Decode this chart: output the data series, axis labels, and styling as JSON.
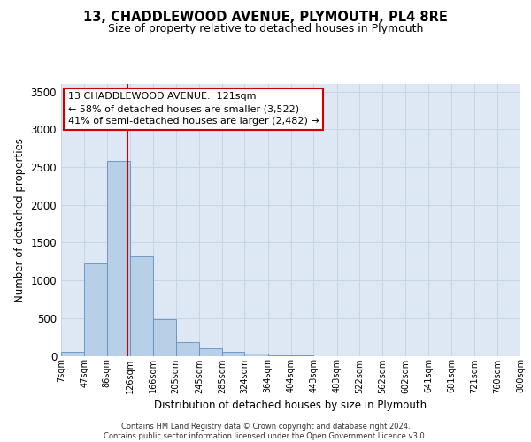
{
  "title1": "13, CHADDLEWOOD AVENUE, PLYMOUTH, PL4 8RE",
  "title2": "Size of property relative to detached houses in Plymouth",
  "xlabel": "Distribution of detached houses by size in Plymouth",
  "ylabel": "Number of detached properties",
  "categories": [
    "7sqm",
    "47sqm",
    "86sqm",
    "126sqm",
    "166sqm",
    "205sqm",
    "245sqm",
    "285sqm",
    "324sqm",
    "364sqm",
    "404sqm",
    "443sqm",
    "483sqm",
    "522sqm",
    "562sqm",
    "602sqm",
    "641sqm",
    "681sqm",
    "721sqm",
    "760sqm",
    "800sqm"
  ],
  "bar_edges": [
    7,
    47,
    86,
    126,
    166,
    205,
    245,
    285,
    324,
    364,
    404,
    443,
    483,
    522,
    562,
    602,
    641,
    681,
    721,
    760,
    800
  ],
  "bar_heights": [
    50,
    1220,
    2580,
    1320,
    490,
    185,
    100,
    55,
    30,
    10,
    5,
    0,
    0,
    0,
    0,
    0,
    0,
    0,
    0,
    0
  ],
  "bar_color": "#b8cfe8",
  "bar_edge_color": "#6090c0",
  "grid_color": "#c8d4e4",
  "background_color": "#dde8f4",
  "vline_x": 121,
  "vline_color": "#cc0000",
  "ylim": [
    0,
    3600
  ],
  "yticks": [
    0,
    500,
    1000,
    1500,
    2000,
    2500,
    3000,
    3500
  ],
  "annotation_title": "13 CHADDLEWOOD AVENUE:  121sqm",
  "annotation_line1": "← 58% of detached houses are smaller (3,522)",
  "annotation_line2": "41% of semi-detached houses are larger (2,482) →",
  "annotation_box_color": "#ffffff",
  "annotation_border_color": "#cc0000",
  "footer1": "Contains HM Land Registry data © Crown copyright and database right 2024.",
  "footer2": "Contains public sector information licensed under the Open Government Licence v3.0."
}
